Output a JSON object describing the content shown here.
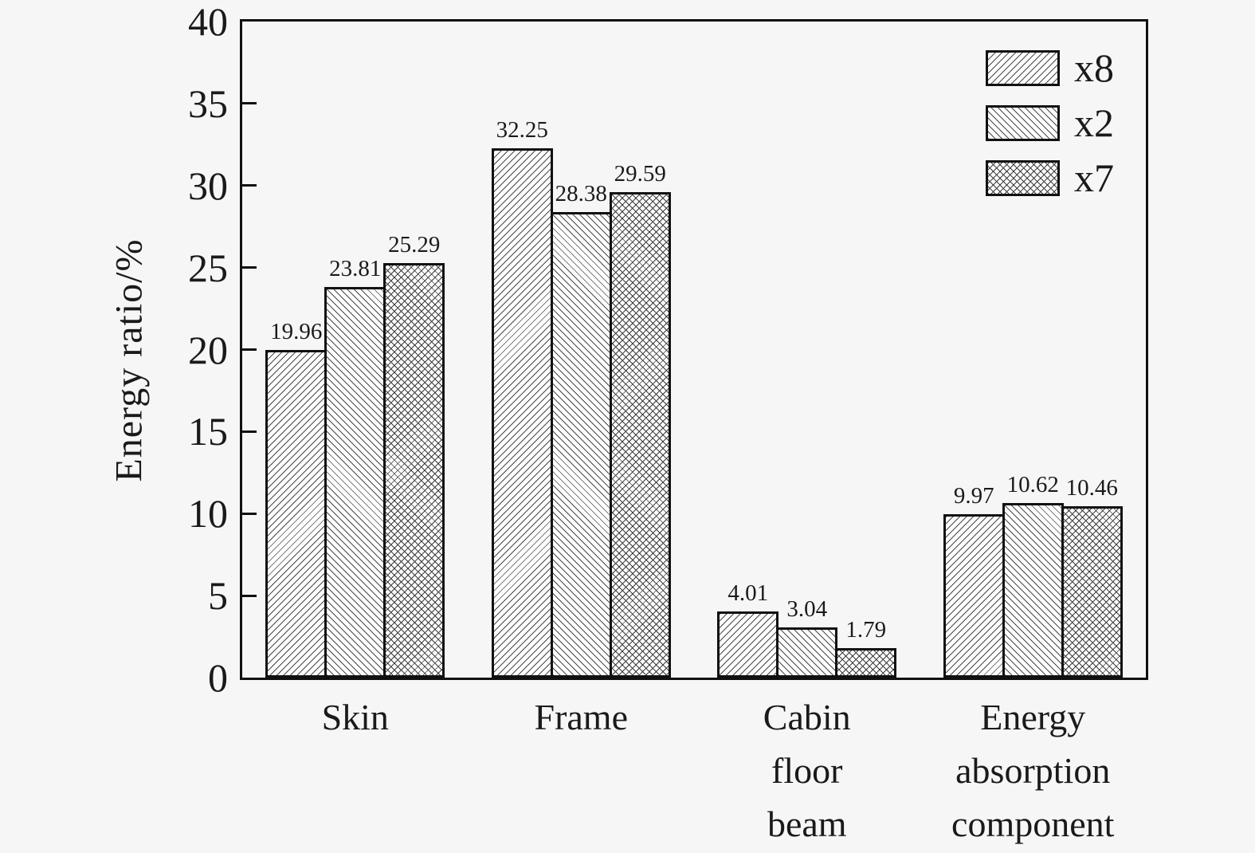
{
  "page": {
    "background_color": "#f6f6f6",
    "axis_color": "#111111",
    "hatch_color": "#4a4a4a",
    "bar_fill_color": "#fdfdfd"
  },
  "chart_data": {
    "type": "bar",
    "title": "",
    "xlabel": "",
    "ylabel": "Energy ratio/%",
    "ylim": [
      0,
      40
    ],
    "yticks": [
      0,
      5,
      10,
      15,
      20,
      25,
      30,
      35,
      40
    ],
    "grid": false,
    "legend_position": "top-right",
    "categories": [
      "Skin",
      "Frame",
      "Cabin floor beam",
      "Energy absorption component"
    ],
    "series": [
      {
        "name": "x8",
        "hatch": "forward-diagonal",
        "values": [
          19.96,
          32.25,
          4.01,
          9.97
        ]
      },
      {
        "name": "x2",
        "hatch": "backward-diagonal",
        "values": [
          23.81,
          28.38,
          3.04,
          10.62
        ]
      },
      {
        "name": "x7",
        "hatch": "cross",
        "values": [
          25.29,
          29.59,
          1.79,
          10.46
        ]
      }
    ],
    "value_labels_shown": true
  }
}
